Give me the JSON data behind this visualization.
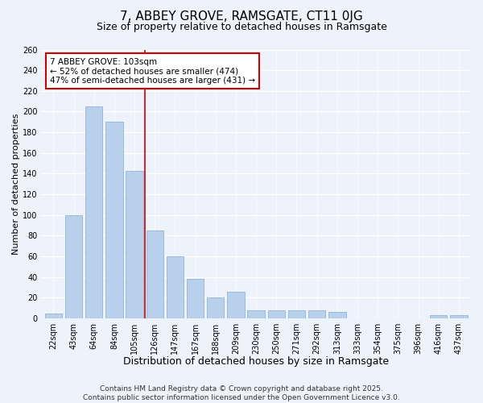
{
  "title": "7, ABBEY GROVE, RAMSGATE, CT11 0JG",
  "subtitle": "Size of property relative to detached houses in Ramsgate",
  "xlabel": "Distribution of detached houses by size in Ramsgate",
  "ylabel": "Number of detached properties",
  "bar_labels": [
    "22sqm",
    "43sqm",
    "64sqm",
    "84sqm",
    "105sqm",
    "126sqm",
    "147sqm",
    "167sqm",
    "188sqm",
    "209sqm",
    "230sqm",
    "250sqm",
    "271sqm",
    "292sqm",
    "313sqm",
    "333sqm",
    "354sqm",
    "375sqm",
    "396sqm",
    "416sqm",
    "437sqm"
  ],
  "bar_values": [
    5,
    100,
    205,
    190,
    143,
    85,
    60,
    38,
    20,
    26,
    8,
    8,
    8,
    8,
    6,
    0,
    0,
    0,
    0,
    3,
    3
  ],
  "bar_color": "#b8d0eb",
  "bar_edge_color": "#90b4d8",
  "ylim": [
    0,
    260
  ],
  "yticks": [
    0,
    20,
    40,
    60,
    80,
    100,
    120,
    140,
    160,
    180,
    200,
    220,
    240,
    260
  ],
  "vline_x": 4.5,
  "vline_color": "#cc0000",
  "annotation_title": "7 ABBEY GROVE: 103sqm",
  "annotation_line1": "← 52% of detached houses are smaller (474)",
  "annotation_line2": "47% of semi-detached houses are larger (431) →",
  "annotation_box_color": "#ffffff",
  "annotation_box_edge": "#cc0000",
  "bg_color": "#eef2fa",
  "grid_color": "#ffffff",
  "footer1": "Contains HM Land Registry data © Crown copyright and database right 2025.",
  "footer2": "Contains public sector information licensed under the Open Government Licence v3.0.",
  "title_fontsize": 11,
  "subtitle_fontsize": 9,
  "xlabel_fontsize": 9,
  "ylabel_fontsize": 8,
  "tick_fontsize": 7,
  "annotation_fontsize": 7.5,
  "footer_fontsize": 6.5
}
